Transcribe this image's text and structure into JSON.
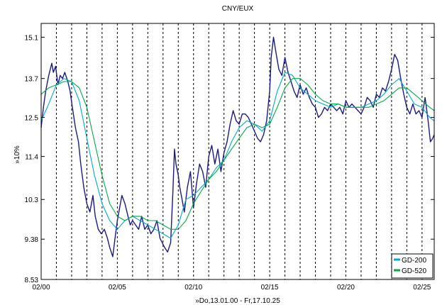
{
  "chart_data": {
    "type": "line",
    "title": "CNY/EUX",
    "xlabel": "»Do,13.01.00 - Fr,17.10.25",
    "ylabel": "»10%",
    "y_scale": "log",
    "ylim": [
      8.53,
      15.6
    ],
    "y_ticks": [
      8.53,
      9.38,
      10.3,
      11.4,
      12.5,
      13.7,
      15.1
    ],
    "y_tick_labels": [
      "8.53",
      "9.38",
      "10.3",
      "11.4",
      "12.5",
      "13.7",
      "15.1"
    ],
    "xlim": [
      2000.0,
      2025.8
    ],
    "x_ticks": [
      2000.0,
      2005.0,
      2010.0,
      2015.0,
      2020.0,
      2025.0
    ],
    "x_tick_labels": [
      "02/00",
      "02/05",
      "02/10",
      "02/15",
      "02/20",
      "02/25"
    ],
    "vertical_gridlines": [
      2000.0,
      2001.0,
      2002.0,
      2003.0,
      2004.0,
      2005.0,
      2006.0,
      2007.0,
      2008.0,
      2009.0,
      2010.0,
      2011.0,
      2012.0,
      2013.0,
      2014.0,
      2015.0,
      2016.0,
      2017.0,
      2018.0,
      2019.0,
      2020.0,
      2021.0,
      2022.0,
      2023.0,
      2024.0,
      2025.0
    ],
    "legend_position": "bottom-right",
    "series": [
      {
        "name": "",
        "color": "#1a1a80",
        "x": [
          2000.0,
          2000.15,
          2000.3,
          2000.5,
          2000.7,
          2000.8,
          2000.95,
          2001.1,
          2001.25,
          2001.4,
          2001.55,
          2001.75,
          2001.9,
          2002.05,
          2002.25,
          2002.45,
          2002.6,
          2002.8,
          2003.0,
          2003.2,
          2003.4,
          2003.55,
          2003.75,
          2003.95,
          2004.15,
          2004.35,
          2004.5,
          2004.7,
          2004.85,
          2005.0,
          2005.15,
          2005.3,
          2005.5,
          2005.7,
          2005.85,
          2006.0,
          2006.2,
          2006.4,
          2006.6,
          2006.8,
          2007.0,
          2007.2,
          2007.4,
          2007.6,
          2007.8,
          2007.95,
          2008.1,
          2008.3,
          2008.5,
          2008.65,
          2008.75,
          2008.85,
          2009.0,
          2009.1,
          2009.25,
          2009.4,
          2009.6,
          2009.8,
          2010.0,
          2010.2,
          2010.4,
          2010.6,
          2010.8,
          2011.0,
          2011.2,
          2011.4,
          2011.6,
          2011.8,
          2012.0,
          2012.2,
          2012.4,
          2012.6,
          2012.8,
          2013.0,
          2013.2,
          2013.4,
          2013.6,
          2013.8,
          2014.0,
          2014.2,
          2014.4,
          2014.6,
          2014.8,
          2015.0,
          2015.1,
          2015.25,
          2015.4,
          2015.6,
          2015.8,
          2016.0,
          2016.2,
          2016.4,
          2016.6,
          2016.8,
          2017.0,
          2017.2,
          2017.4,
          2017.6,
          2017.8,
          2018.0,
          2018.2,
          2018.4,
          2018.6,
          2018.8,
          2019.0,
          2019.2,
          2019.4,
          2019.6,
          2019.8,
          2020.0,
          2020.2,
          2020.4,
          2020.6,
          2020.8,
          2021.0,
          2021.2,
          2021.4,
          2021.6,
          2021.8,
          2022.0,
          2022.2,
          2022.4,
          2022.6,
          2022.8,
          2023.0,
          2023.2,
          2023.4,
          2023.6,
          2023.8,
          2024.0,
          2024.2,
          2024.4,
          2024.6,
          2024.8,
          2025.0,
          2025.2,
          2025.4,
          2025.55,
          2025.7,
          2025.8
        ],
        "values": [
          12.2,
          12.8,
          13.3,
          13.8,
          14.2,
          13.9,
          14.1,
          13.5,
          13.8,
          13.7,
          13.9,
          13.6,
          13.3,
          12.8,
          12.2,
          11.8,
          11.2,
          10.6,
          10.2,
          10.0,
          10.4,
          9.9,
          9.6,
          9.5,
          9.6,
          9.4,
          9.2,
          9.0,
          9.4,
          9.8,
          10.1,
          10.4,
          10.2,
          9.9,
          9.7,
          9.8,
          9.7,
          9.6,
          9.9,
          9.6,
          9.7,
          9.5,
          9.6,
          9.8,
          9.4,
          9.3,
          9.2,
          9.1,
          9.3,
          10.5,
          11.6,
          11.2,
          10.9,
          10.6,
          10.3,
          10.0,
          10.6,
          11.0,
          10.1,
          10.7,
          11.2,
          11.0,
          10.6,
          11.4,
          11.7,
          11.2,
          11.6,
          11.0,
          11.5,
          11.8,
          12.3,
          12.7,
          12.4,
          12.3,
          12.6,
          12.6,
          12.5,
          12.3,
          12.1,
          11.9,
          11.8,
          12.0,
          12.4,
          13.3,
          14.4,
          15.1,
          14.6,
          14.0,
          13.8,
          14.4,
          13.9,
          13.6,
          13.3,
          13.1,
          13.5,
          13.2,
          13.4,
          13.1,
          12.9,
          12.8,
          12.5,
          12.6,
          12.8,
          12.7,
          12.9,
          12.8,
          12.7,
          12.8,
          12.6,
          13.0,
          12.8,
          12.9,
          12.8,
          12.7,
          12.6,
          12.8,
          13.1,
          13.0,
          12.8,
          13.2,
          13.1,
          13.4,
          13.3,
          13.6,
          14.0,
          14.5,
          14.3,
          13.7,
          13.2,
          12.8,
          12.6,
          12.9,
          12.6,
          12.7,
          12.5,
          13.1,
          12.4,
          11.8,
          11.9,
          12.0
        ]
      },
      {
        "name": "GD-200",
        "color": "#00aacc",
        "x": [
          2000.0,
          2000.5,
          2001.0,
          2001.5,
          2002.0,
          2002.5,
          2003.0,
          2003.5,
          2004.0,
          2004.5,
          2005.0,
          2005.5,
          2006.0,
          2006.5,
          2007.0,
          2007.5,
          2008.0,
          2008.5,
          2009.0,
          2009.5,
          2010.0,
          2010.5,
          2011.0,
          2011.5,
          2012.0,
          2012.5,
          2013.0,
          2013.5,
          2014.0,
          2014.5,
          2015.0,
          2015.5,
          2016.0,
          2016.5,
          2017.0,
          2017.5,
          2018.0,
          2018.5,
          2019.0,
          2019.5,
          2020.0,
          2020.5,
          2021.0,
          2021.5,
          2022.0,
          2022.5,
          2023.0,
          2023.5,
          2024.0,
          2024.5,
          2025.0,
          2025.5,
          2025.8
        ],
        "values": [
          12.4,
          12.9,
          13.5,
          13.7,
          13.6,
          13.0,
          11.9,
          10.9,
          10.2,
          9.8,
          9.6,
          9.8,
          9.9,
          9.8,
          9.7,
          9.6,
          9.5,
          9.4,
          9.7,
          10.3,
          10.4,
          10.6,
          10.8,
          11.1,
          11.3,
          11.8,
          12.2,
          12.4,
          12.3,
          12.1,
          12.4,
          13.3,
          13.9,
          13.8,
          13.4,
          13.2,
          13.0,
          12.9,
          12.8,
          12.9,
          12.8,
          12.8,
          12.8,
          12.9,
          13.0,
          13.2,
          13.5,
          13.7,
          13.3,
          12.9,
          12.8,
          12.5,
          12.4
        ]
      },
      {
        "name": "GD-520",
        "color": "#00aa44",
        "x": [
          2000.0,
          2000.5,
          2001.0,
          2001.5,
          2002.0,
          2002.5,
          2003.0,
          2003.5,
          2004.0,
          2004.5,
          2005.0,
          2005.5,
          2006.0,
          2006.5,
          2007.0,
          2007.5,
          2008.0,
          2008.5,
          2009.0,
          2009.5,
          2010.0,
          2010.5,
          2011.0,
          2011.5,
          2012.0,
          2012.5,
          2013.0,
          2013.5,
          2014.0,
          2014.5,
          2015.0,
          2015.5,
          2016.0,
          2016.5,
          2017.0,
          2017.5,
          2018.0,
          2018.5,
          2019.0,
          2019.5,
          2020.0,
          2020.5,
          2021.0,
          2021.5,
          2022.0,
          2022.5,
          2023.0,
          2023.5,
          2024.0,
          2024.5,
          2025.0,
          2025.5,
          2025.8
        ],
        "values": [
          13.2,
          13.4,
          13.5,
          13.6,
          13.6,
          13.4,
          12.8,
          11.8,
          10.9,
          10.2,
          9.9,
          9.8,
          9.9,
          9.9,
          9.8,
          9.8,
          9.7,
          9.6,
          9.6,
          9.8,
          10.2,
          10.5,
          10.8,
          11.0,
          11.3,
          11.6,
          11.9,
          12.2,
          12.3,
          12.2,
          12.3,
          12.8,
          13.4,
          13.7,
          13.7,
          13.5,
          13.2,
          13.0,
          12.9,
          12.9,
          12.8,
          12.8,
          12.8,
          12.8,
          12.9,
          13.0,
          13.2,
          13.4,
          13.4,
          13.2,
          13.0,
          12.8,
          12.7
        ]
      }
    ]
  }
}
